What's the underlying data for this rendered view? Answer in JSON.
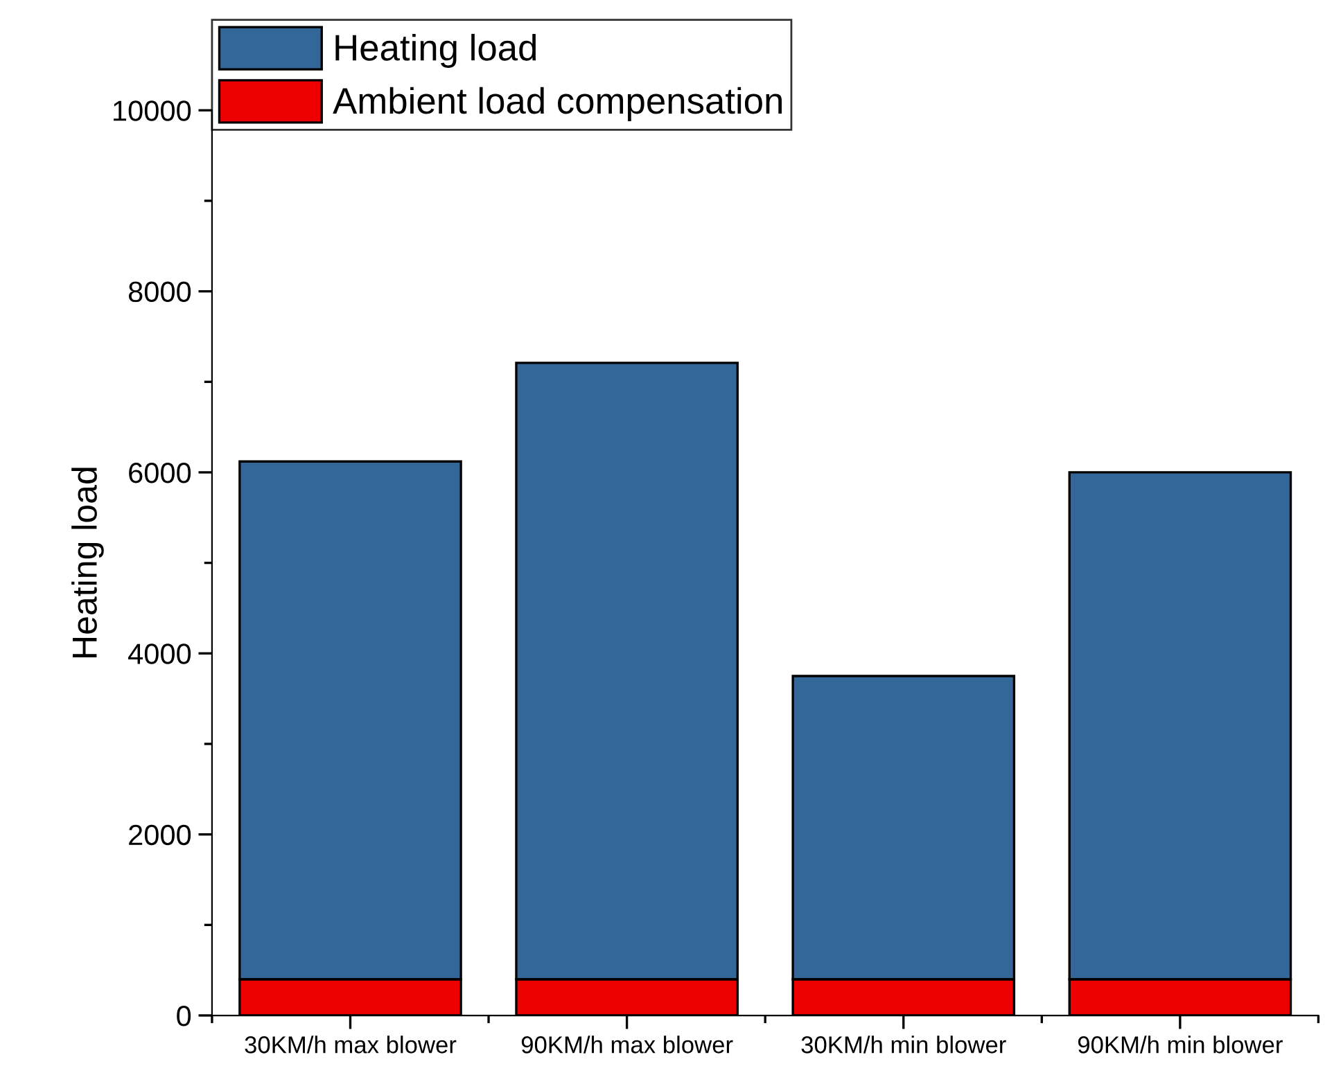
{
  "chart_data": {
    "type": "bar",
    "stacked": true,
    "ylabel": "Heating load",
    "categories": [
      "30KM/h max blower",
      "90KM/h max blower",
      "30KM/h min blower",
      "90KM/h min blower"
    ],
    "series": [
      {
        "name": "Ambient load compensation",
        "color": "#ee0000",
        "values": [
          400,
          400,
          400,
          400
        ]
      },
      {
        "name": "Heating load",
        "color": "#336699",
        "values": [
          5720,
          6810,
          3350,
          5600
        ]
      }
    ],
    "ylim": [
      0,
      10000
    ],
    "yticks": [
      0,
      2000,
      4000,
      6000,
      8000,
      10000
    ],
    "grid": false,
    "legend": "top left"
  }
}
